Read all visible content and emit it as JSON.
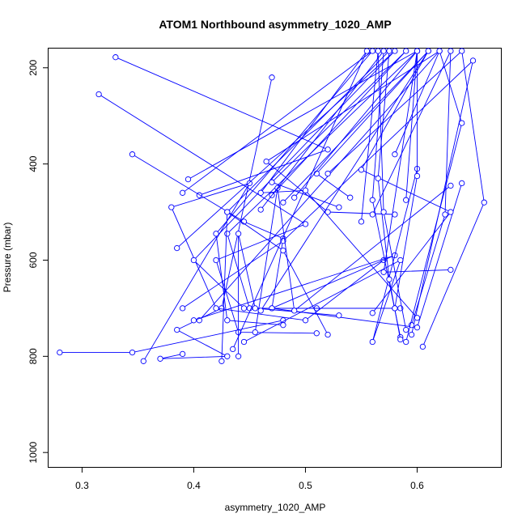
{
  "chart_data": {
    "type": "line",
    "title": "ATOM1 Northbound asymmetry_1020_AMP",
    "xlabel": "asymmetry_1020_AMP",
    "ylabel": "Pressure (mbar)",
    "xlim": [
      0.27,
      0.675
    ],
    "ylim": [
      1030,
      160
    ],
    "y_reversed": true,
    "xticks": [
      0.3,
      0.4,
      0.5,
      0.6
    ],
    "xtick_labels": [
      "0.3",
      "0.4",
      "0.5",
      "0.6"
    ],
    "yticks": [
      200,
      400,
      600,
      800,
      1000
    ],
    "ytick_labels": [
      "200",
      "400",
      "600",
      "800",
      "1000"
    ],
    "grid": false,
    "legend": "none",
    "series_color": "#0000ff",
    "series": [
      {
        "profiles": [
          [
            [
              0.33,
              178
            ],
            [
              0.52,
              370
            ],
            [
              0.405,
              465
            ]
          ],
          [
            [
              0.315,
              255
            ],
            [
              0.5,
              525
            ],
            [
              0.42,
              600
            ],
            [
              0.44,
              750
            ],
            [
              0.51,
              752
            ]
          ],
          [
            [
              0.345,
              380
            ],
            [
              0.445,
              520
            ],
            [
              0.48,
              555
            ],
            [
              0.47,
              700
            ],
            [
              0.51,
              700
            ]
          ],
          [
            [
              0.47,
              220
            ],
            [
              0.425,
              700
            ],
            [
              0.385,
              745
            ],
            [
              0.43,
              800
            ],
            [
              0.37,
              805
            ],
            [
              0.39,
              795
            ]
          ],
          [
            [
              0.28,
              792
            ],
            [
              0.345,
              792
            ],
            [
              0.48,
              725
            ]
          ],
          [
            [
              0.355,
              810
            ],
            [
              0.45,
              440
            ],
            [
              0.38,
              490
            ],
            [
              0.42,
              700
            ],
            [
              0.5,
              725
            ],
            [
              0.57,
              600
            ]
          ],
          [
            [
              0.385,
              575
            ],
            [
              0.58,
              165
            ],
            [
              0.4,
              600
            ],
            [
              0.445,
              700
            ],
            [
              0.58,
              700
            ]
          ],
          [
            [
              0.39,
              460
            ],
            [
              0.56,
              165
            ],
            [
              0.42,
              545
            ],
            [
              0.43,
              725
            ],
            [
              0.48,
              735
            ]
          ],
          [
            [
              0.395,
              432
            ],
            [
              0.6,
              165
            ],
            [
              0.43,
              545
            ],
            [
              0.45,
              700
            ],
            [
              0.585,
              700
            ]
          ],
          [
            [
              0.39,
              700
            ],
            [
              0.48,
              560
            ],
            [
              0.65,
              185
            ],
            [
              0.595,
              755
            ]
          ],
          [
            [
              0.405,
              725
            ],
            [
              0.62,
              165
            ],
            [
              0.465,
              395
            ],
            [
              0.52,
              500
            ],
            [
              0.58,
              505
            ]
          ],
          [
            [
              0.4,
              725
            ],
            [
              0.58,
              590
            ],
            [
              0.47,
              700
            ],
            [
              0.6,
              740
            ],
            [
              0.64,
              440
            ]
          ],
          [
            [
              0.435,
              785
            ],
            [
              0.555,
              165
            ],
            [
              0.46,
              460
            ],
            [
              0.5,
              455
            ],
            [
              0.6,
              720
            ]
          ],
          [
            [
              0.44,
              800
            ],
            [
              0.44,
              545
            ],
            [
              0.455,
              700
            ],
            [
              0.53,
              715
            ]
          ],
          [
            [
              0.445,
              770
            ],
            [
              0.585,
              600
            ],
            [
              0.56,
              770
            ],
            [
              0.6,
              410
            ]
          ],
          [
            [
              0.425,
              810
            ],
            [
              0.43,
              500
            ],
            [
              0.48,
              580
            ],
            [
              0.52,
              755
            ]
          ],
          [
            [
              0.455,
              750
            ],
            [
              0.475,
              450
            ],
            [
              0.49,
              705
            ],
            [
              0.63,
              445
            ]
          ],
          [
            [
              0.46,
              705
            ],
            [
              0.61,
              165
            ],
            [
              0.51,
              420
            ],
            [
              0.54,
              470
            ]
          ],
          [
            [
              0.47,
              465
            ],
            [
              0.59,
              165
            ],
            [
              0.47,
              438
            ],
            [
              0.53,
              490
            ]
          ],
          [
            [
              0.48,
              480
            ],
            [
              0.61,
              165
            ],
            [
              0.55,
              412
            ],
            [
              0.63,
              500
            ],
            [
              0.56,
              710
            ]
          ],
          [
            [
              0.46,
              495
            ],
            [
              0.57,
              165
            ],
            [
              0.56,
              475
            ],
            [
              0.585,
              760
            ]
          ],
          [
            [
              0.43,
              500
            ],
            [
              0.575,
              165
            ],
            [
              0.565,
              430
            ],
            [
              0.575,
              640
            ],
            [
              0.585,
              765
            ]
          ],
          [
            [
              0.49,
              470
            ],
            [
              0.6,
              165
            ],
            [
              0.57,
              625
            ],
            [
              0.63,
              620
            ]
          ],
          [
            [
              0.52,
              420
            ],
            [
              0.64,
              165
            ],
            [
              0.66,
              480
            ],
            [
              0.605,
              780
            ]
          ],
          [
            [
              0.55,
              520
            ],
            [
              0.565,
              165
            ],
            [
              0.57,
              500
            ],
            [
              0.59,
              745
            ]
          ],
          [
            [
              0.56,
              505
            ],
            [
              0.63,
              165
            ],
            [
              0.625,
              505
            ],
            [
              0.595,
              735
            ]
          ],
          [
            [
              0.58,
              380
            ],
            [
              0.62,
              165
            ],
            [
              0.64,
              315
            ],
            [
              0.59,
              770
            ]
          ],
          [
            [
              0.59,
              475
            ],
            [
              0.6,
              165
            ],
            [
              0.6,
              425
            ],
            [
              0.58,
              700
            ]
          ]
        ]
      }
    ]
  }
}
